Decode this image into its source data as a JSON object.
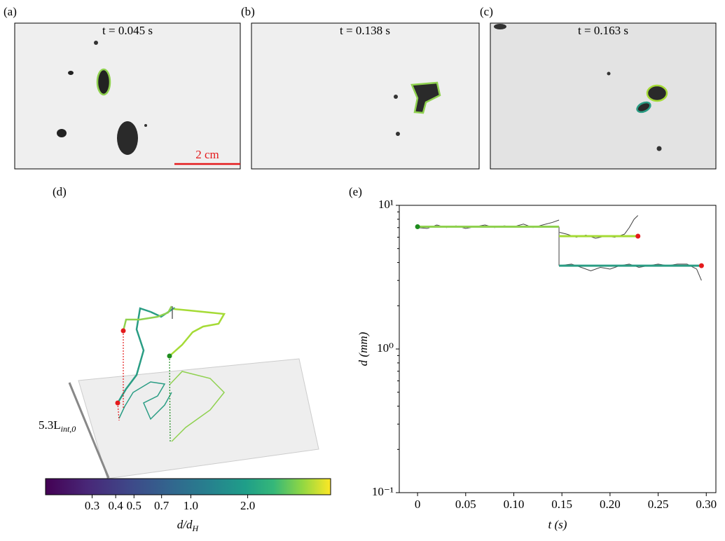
{
  "panels": [
    {
      "label": "(a)",
      "time": "t = 0.045 s"
    },
    {
      "label": "(b)",
      "time": "t = 0.138 s"
    },
    {
      "label": "(c)",
      "time": "t = 0.163 s"
    }
  ],
  "scale_bar": "2 cm",
  "panel_d": {
    "label": "(d)",
    "length_main": "5.3L",
    "length_sub": "int,0"
  },
  "chart_data": [
    {
      "type": "colorbar",
      "colormap": "viridis",
      "log": true,
      "clim": [
        0.17,
        5.5
      ],
      "ticks": [
        0.3,
        0.4,
        0.5,
        0.7,
        {
          "value": 1.0,
          "label": "1.0"
        },
        {
          "value": 2.0,
          "label": "2.0"
        }
      ],
      "label_main": "d/d",
      "label_sub": "H"
    },
    {
      "type": "line",
      "label": "(e)",
      "xlabel": "t (s)",
      "ylabel": "d (mm)",
      "log_y": true,
      "xlim": [
        -0.019,
        0.31
      ],
      "ylim": [
        0.1,
        10
      ],
      "xticks": [
        0,
        0.05,
        {
          "value": 0.1,
          "label": "0.10"
        },
        0.15,
        {
          "value": 0.2,
          "label": "0.20"
        },
        0.25,
        {
          "value": 0.3,
          "label": "0.30"
        }
      ],
      "yticks": [
        {
          "value": 0.1,
          "label": "10⁻¹"
        },
        {
          "value": 1,
          "label": "10⁰"
        },
        {
          "value": 10,
          "label": "10¹"
        }
      ],
      "fits": [
        {
          "color": "#808080",
          "x": [
            0.147,
            0.147
          ],
          "values": [
            7.1,
            3.8
          ]
        },
        {
          "color": "#8fd14f",
          "x": [
            0,
            0.147
          ],
          "values": [
            7.1,
            7.1
          ]
        },
        {
          "color": "#a5db36",
          "x": [
            0.147,
            0.229
          ],
          "values": [
            6.1,
            6.1
          ]
        },
        {
          "color": "#2a9d84",
          "x": [
            0.147,
            0.295
          ],
          "values": [
            3.8,
            3.8
          ]
        }
      ],
      "raw": [
        {
          "color": "#404040",
          "x": [
            0,
            0.01,
            0.02,
            0.03,
            0.04,
            0.05,
            0.06,
            0.07,
            0.08,
            0.09,
            0.1,
            0.11,
            0.12,
            0.13,
            0.14,
            0.147
          ],
          "values": [
            7.0,
            6.9,
            7.3,
            7.0,
            7.2,
            6.9,
            7.1,
            7.3,
            7.0,
            7.2,
            7.1,
            7.4,
            7.0,
            7.3,
            7.6,
            7.9
          ]
        },
        {
          "color": "#404040",
          "x": [
            0.147,
            0.155,
            0.165,
            0.175,
            0.185,
            0.195,
            0.205,
            0.215,
            0.22,
            0.225,
            0.229
          ],
          "values": [
            6.5,
            6.3,
            6.0,
            6.2,
            5.9,
            6.1,
            6.0,
            6.3,
            7.0,
            8.0,
            8.5
          ]
        },
        {
          "color": "#404040",
          "x": [
            0.147,
            0.16,
            0.17,
            0.18,
            0.19,
            0.2,
            0.21,
            0.22,
            0.23,
            0.24,
            0.25,
            0.26,
            0.27,
            0.28,
            0.29,
            0.295
          ],
          "values": [
            3.8,
            3.9,
            3.7,
            3.5,
            3.7,
            3.6,
            3.8,
            3.9,
            3.7,
            3.8,
            3.9,
            3.8,
            3.9,
            3.9,
            3.6,
            3.0
          ]
        }
      ],
      "points": {
        "x": [
          0,
          0.229,
          0.295
        ],
        "values": [
          7.1,
          6.1,
          3.8
        ],
        "colors": [
          "#1e8c1e",
          "#e41a1c",
          "#e41a1c"
        ]
      }
    }
  ]
}
